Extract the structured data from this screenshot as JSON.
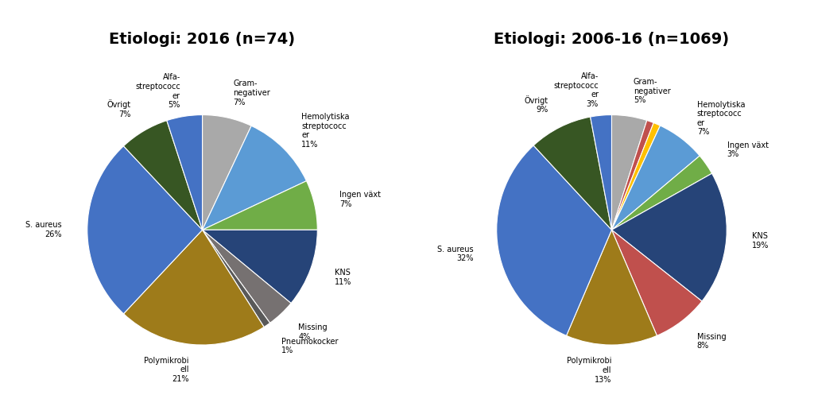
{
  "chart_data": [
    {
      "type": "pie",
      "title": "Etiologi: 2016 (n=74)",
      "categories": [
        "Gram-\nnegativer\n7%",
        "Hemolytiska\nstreptococc\ner\n11%",
        "Ingen växt\n7%",
        "KNS\n11%",
        "Missing\n4%",
        "Pneumokocker\n1%",
        "Polymikrobi\nell\n21%",
        "S. aureus\n26%",
        "Övrigt\n7%",
        "Alfa-\nstreptococc\ner\n5%"
      ],
      "values": [
        7,
        11,
        7,
        11,
        4,
        1,
        21,
        26,
        7,
        5
      ],
      "colors": [
        "#A9A9A9",
        "#5B9BD5",
        "#70AD47",
        "#264478",
        "#767171",
        "#595959",
        "#9E7B1A",
        "#4472C4",
        "#375623",
        "#4472C4"
      ]
    },
    {
      "type": "pie",
      "title": "Etiologi: 2006-16 (n=1069)",
      "categories": [
        "Gram-\nnegativer\n5%",
        null,
        null,
        "Hemolytiska\nstreptococc\ner\n7%",
        "Ingen växt\n3%",
        "KNS\n19%",
        "Missing\n8%",
        "Polymikrobi\nell\n13%",
        "S. aureus\n32%",
        "Övrigt\n9%",
        "Alfa-\nstreptococc\ner\n3%"
      ],
      "values": [
        5,
        1,
        1,
        7,
        3,
        19,
        8,
        13,
        32,
        9,
        3
      ],
      "colors": [
        "#A9A9A9",
        "#C0504D",
        "#FFC000",
        "#5B9BD5",
        "#70AD47",
        "#264478",
        "#C0504D",
        "#9E7B1A",
        "#4472C4",
        "#375623",
        "#4472C4"
      ]
    }
  ]
}
